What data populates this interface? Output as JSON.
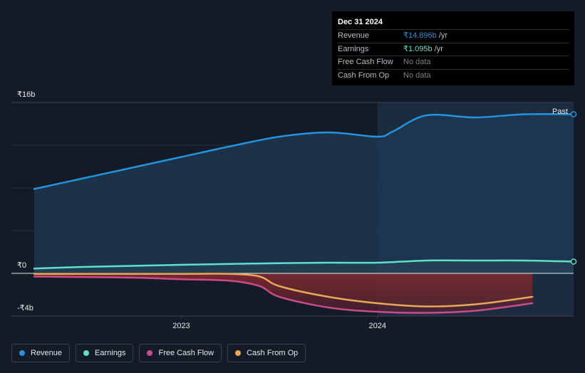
{
  "chart_data": {
    "type": "area",
    "y_unit_label": "₹",
    "ylim": [
      -4,
      16
    ],
    "y_ticks": [
      {
        "value": 16,
        "label": "₹16b"
      },
      {
        "value": 0,
        "label": "₹0"
      },
      {
        "value": -4,
        "label": "-₹4b"
      }
    ],
    "x_ticks": [
      {
        "value": 2023.0,
        "label": "2023"
      },
      {
        "value": 2024.0,
        "label": "2024"
      }
    ],
    "xlim": [
      2022.12,
      2025.07
    ],
    "past_start": 2024.0,
    "past_label": "Past",
    "series": [
      {
        "name": "Revenue",
        "color": "#2394df",
        "x": [
          2022.25,
          2022.5,
          2022.75,
          2023.0,
          2023.25,
          2023.5,
          2023.75,
          2024.0,
          2024.08,
          2024.25,
          2024.5,
          2024.75,
          2025.0
        ],
        "values": [
          7.9,
          8.9,
          9.9,
          10.9,
          11.9,
          12.8,
          13.2,
          12.8,
          13.3,
          14.8,
          14.6,
          14.9,
          14.9
        ]
      },
      {
        "name": "Earnings",
        "color": "#5fe0cd",
        "x": [
          2022.25,
          2022.5,
          2022.75,
          2023.0,
          2023.25,
          2023.5,
          2023.75,
          2024.0,
          2024.25,
          2024.5,
          2024.75,
          2025.0
        ],
        "values": [
          0.45,
          0.6,
          0.7,
          0.8,
          0.88,
          0.95,
          1.0,
          1.0,
          1.2,
          1.2,
          1.2,
          1.1
        ]
      },
      {
        "name": "Free Cash Flow",
        "color": "#c94b8c",
        "x": [
          2022.25,
          2022.5,
          2022.75,
          2023.0,
          2023.25,
          2023.4,
          2023.5,
          2023.75,
          2024.0,
          2024.25,
          2024.5,
          2024.79
        ],
        "values": [
          -0.3,
          -0.35,
          -0.4,
          -0.55,
          -0.7,
          -1.2,
          -2.2,
          -3.2,
          -3.6,
          -3.7,
          -3.5,
          -2.8
        ]
      },
      {
        "name": "Cash From Op",
        "color": "#e8a85a",
        "x": [
          2022.25,
          2022.5,
          2022.75,
          2023.0,
          2023.25,
          2023.4,
          2023.5,
          2023.75,
          2024.0,
          2024.25,
          2024.5,
          2024.79
        ],
        "values": [
          -0.05,
          -0.05,
          -0.05,
          -0.05,
          -0.05,
          -0.3,
          -1.2,
          -2.2,
          -2.8,
          -3.1,
          -2.9,
          -2.2
        ]
      }
    ]
  },
  "tooltip": {
    "date": "Dec 31 2024",
    "rows": [
      {
        "name": "Revenue",
        "value": "₹14.896b",
        "unit": " /yr",
        "color": "#2394df"
      },
      {
        "name": "Earnings",
        "value": "₹1.095b",
        "unit": " /yr",
        "color": "#5fe0cd"
      },
      {
        "name": "Free Cash Flow",
        "value": "No data",
        "unit": "",
        "color": ""
      },
      {
        "name": "Cash From Op",
        "value": "No data",
        "unit": "",
        "color": ""
      }
    ]
  },
  "legend": [
    {
      "name": "Revenue",
      "color": "#2394df"
    },
    {
      "name": "Earnings",
      "color": "#5fe0cd"
    },
    {
      "name": "Free Cash Flow",
      "color": "#c94b8c"
    },
    {
      "name": "Cash From Op",
      "color": "#e8a85a"
    }
  ]
}
